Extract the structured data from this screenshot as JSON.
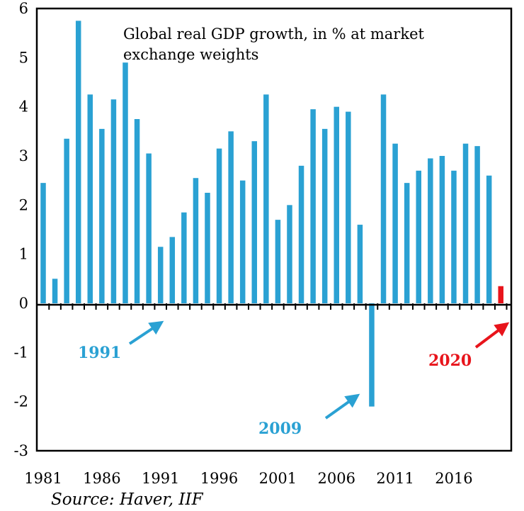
{
  "chart_data": {
    "type": "bar",
    "title_lines": [
      "Global real GDP growth, in % at market",
      "exchange weights"
    ],
    "categories": [
      "1981",
      "1982",
      "1983",
      "1984",
      "1985",
      "1986",
      "1987",
      "1988",
      "1989",
      "1990",
      "1991",
      "1992",
      "1993",
      "1994",
      "1995",
      "1996",
      "1997",
      "1998",
      "1999",
      "2000",
      "2001",
      "2002",
      "2003",
      "2004",
      "2005",
      "2006",
      "2007",
      "2008",
      "2009",
      "2010",
      "2011",
      "2012",
      "2013",
      "2014",
      "2015",
      "2016",
      "2017",
      "2018",
      "2019",
      "2020"
    ],
    "values": [
      2.45,
      0.5,
      3.35,
      5.75,
      4.25,
      3.55,
      4.15,
      4.9,
      3.75,
      3.05,
      1.15,
      1.35,
      1.85,
      2.55,
      2.25,
      3.15,
      3.5,
      2.5,
      3.3,
      4.25,
      1.7,
      2.0,
      2.8,
      3.95,
      3.55,
      4.0,
      3.9,
      1.6,
      -2.1,
      4.25,
      3.25,
      2.45,
      2.7,
      2.95,
      3.0,
      2.7,
      3.25,
      3.2,
      2.6,
      0.35
    ],
    "highlight_category": "2020",
    "ylim": [
      -3,
      6
    ],
    "yticks": [
      "-3",
      "-2",
      "-1",
      "0",
      "1",
      "2",
      "3",
      "4",
      "5",
      "6"
    ],
    "xtick_labels": [
      "1981",
      "1986",
      "1991",
      "1996",
      "2001",
      "2006",
      "2011",
      "2016"
    ],
    "xlabel": "",
    "ylabel": "",
    "annotations": [
      {
        "text": "1991",
        "color": "#2aa1d3"
      },
      {
        "text": "2009",
        "color": "#2aa1d3"
      },
      {
        "text": "2020",
        "color": "#e8141b"
      }
    ],
    "source": "Source: Haver, IIF",
    "colors": {
      "bar": "#2aa1d3",
      "highlight": "#e8141b"
    }
  }
}
